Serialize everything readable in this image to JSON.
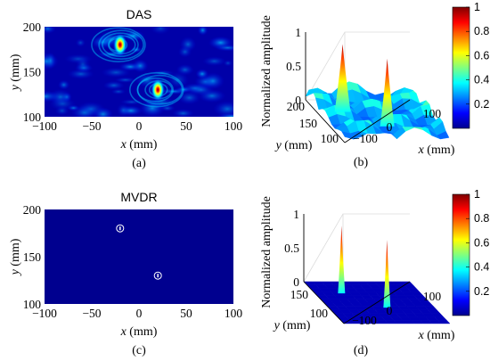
{
  "chart_data": [
    {
      "panel": "a",
      "type": "heatmap",
      "title": "DAS",
      "caption": "(a)",
      "xlabel_var": "x",
      "xlabel_unit": " (mm)",
      "ylabel_var": "y",
      "ylabel_unit": " (mm)",
      "xlim": [
        -100,
        100
      ],
      "ylim": [
        100,
        200
      ],
      "xticks": [
        "−100",
        "−50",
        "0",
        "50",
        "100"
      ],
      "yticks": [
        "100",
        "150",
        "200"
      ],
      "peaks": [
        {
          "x": -20,
          "y": 180,
          "value": 1.0
        },
        {
          "x": 20,
          "y": 130,
          "value": 1.0
        }
      ],
      "background": "speckle"
    },
    {
      "panel": "b",
      "type": "surface3d",
      "caption": "(b)",
      "zlabel": "Normalized amplitude",
      "xlabel_var": "x",
      "xlabel_unit": " (mm)",
      "ylabel_var": "y",
      "ylabel_unit": " (mm)",
      "zticks": [
        "0",
        "0.5",
        "1"
      ],
      "xticks": [
        "−100",
        "0",
        "100"
      ],
      "yticks": [
        "200",
        "150",
        "100"
      ],
      "colorbar_ticks": [
        "0.2",
        "0.4",
        "0.6",
        "0.8",
        "1"
      ]
    },
    {
      "panel": "c",
      "type": "heatmap",
      "title": "MVDR",
      "caption": "(c)",
      "xlabel_var": "x",
      "xlabel_unit": " (mm)",
      "ylabel_var": "y",
      "ylabel_unit": " (mm)",
      "xlim": [
        -100,
        100
      ],
      "ylim": [
        100,
        200
      ],
      "xticks": [
        "−100",
        "−50",
        "0",
        "50",
        "100"
      ],
      "yticks": [
        "100",
        "150",
        "200"
      ],
      "peaks": [
        {
          "x": -20,
          "y": 180,
          "value": 1.0
        },
        {
          "x": 20,
          "y": 130,
          "value": 1.0
        }
      ],
      "background": "flat"
    },
    {
      "panel": "d",
      "type": "surface3d",
      "caption": "(d)",
      "zlabel": "Normalized amplitude",
      "xlabel_var": "x",
      "xlabel_unit": " (mm)",
      "ylabel_var": "y",
      "ylabel_unit": " (mm)",
      "zticks": [
        "0",
        "0.5",
        "1"
      ],
      "xticks": [
        "−100",
        "0",
        "100"
      ],
      "yticks": [
        "150",
        "100"
      ],
      "colorbar_ticks": [
        "0.2",
        "0.4",
        "0.6",
        "0.8",
        "1"
      ]
    }
  ],
  "colors": {
    "jet_low": "#00008f",
    "jet_blue": "#0000ff",
    "jet_cyan": "#00ffff",
    "jet_yellow": "#ffff00",
    "jet_red": "#ff0000",
    "jet_high": "#800000",
    "background": "#ffffff"
  }
}
